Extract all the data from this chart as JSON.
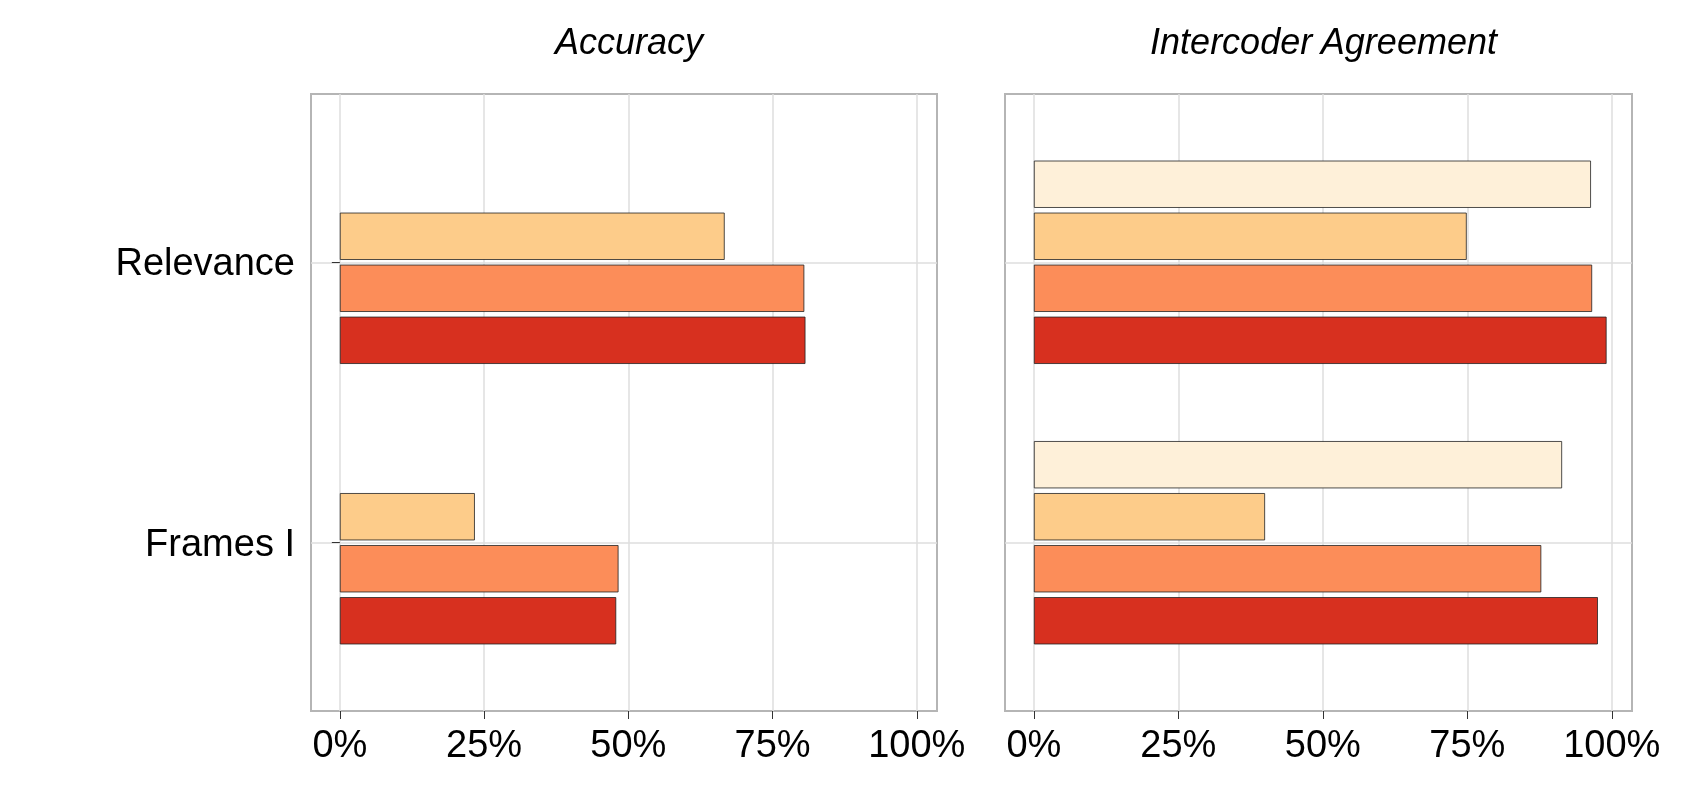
{
  "chart_data": [
    {
      "type": "bar",
      "orientation": "horizontal",
      "title": "Accuracy",
      "categories": [
        "Relevance",
        "Frames I"
      ],
      "series": [
        {
          "color": "#fef0d9",
          "values": [
            null,
            null
          ]
        },
        {
          "color": "#fdcc8a",
          "values": [
            66.7,
            23.4
          ]
        },
        {
          "color": "#fc8d59",
          "values": [
            80.5,
            48.3
          ]
        },
        {
          "color": "#d7301f",
          "values": [
            80.7,
            47.9
          ]
        }
      ],
      "xlim": [
        -5,
        103.5
      ],
      "xticks": [
        {
          "value": 0,
          "label": "0%"
        },
        {
          "value": 25,
          "label": "25%"
        },
        {
          "value": 50,
          "label": "50%"
        },
        {
          "value": 75,
          "label": "75%"
        },
        {
          "value": 100,
          "label": "100%"
        }
      ],
      "grid": true
    },
    {
      "type": "bar",
      "orientation": "horizontal",
      "title": "Intercoder Agreement",
      "categories": [
        null,
        null
      ],
      "series": [
        {
          "color": "#fef0d9",
          "values": [
            96.4,
            91.4
          ]
        },
        {
          "color": "#fdcc8a",
          "values": [
            74.9,
            40.0
          ]
        },
        {
          "color": "#fc8d59",
          "values": [
            96.6,
            87.8
          ]
        },
        {
          "color": "#d7301f",
          "values": [
            99.1,
            97.6
          ]
        }
      ],
      "xlim": [
        -5,
        103.5
      ],
      "xticks": [
        {
          "value": 0,
          "label": "0%"
        },
        {
          "value": 25,
          "label": "25%"
        },
        {
          "value": 50,
          "label": "50%"
        },
        {
          "value": 75,
          "label": "75%"
        },
        {
          "value": 100,
          "label": "100%"
        }
      ],
      "grid": true,
      "tick_labels": "x"
    }
  ]
}
